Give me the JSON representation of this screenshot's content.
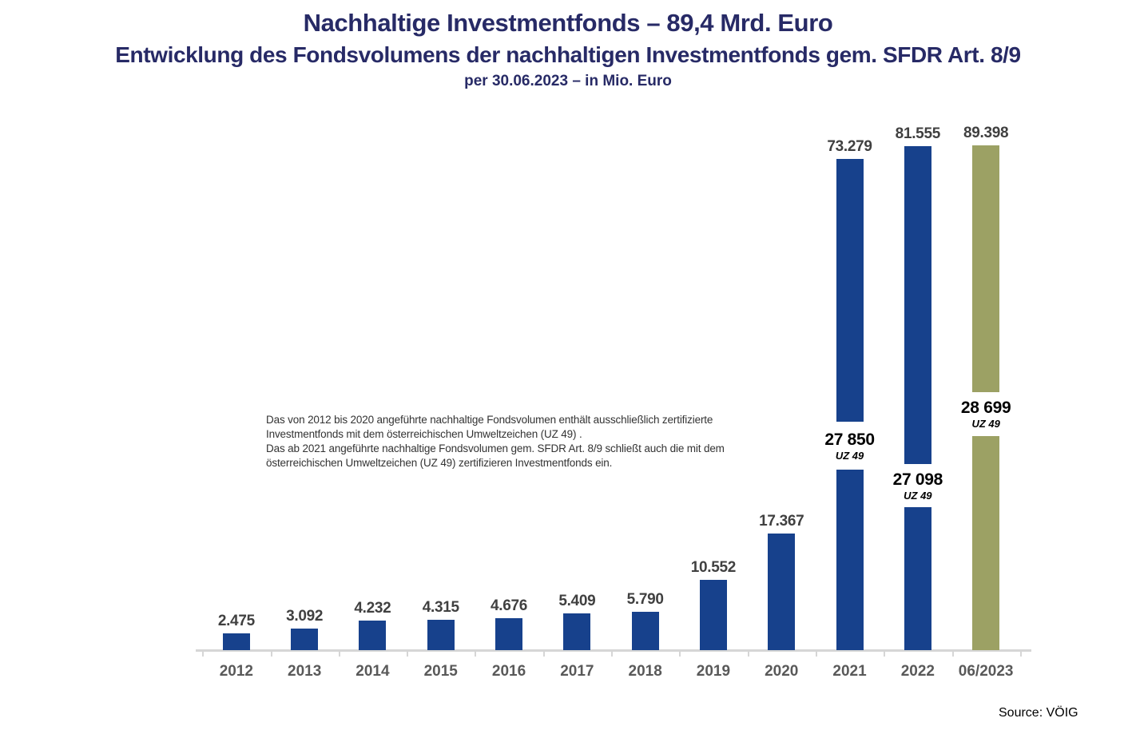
{
  "header": {
    "title": "Nachhaltige Investmentfonds – 89,4 Mrd. Euro",
    "subtitle": "Entwicklung des Fondsvolumens der nachhaltigen Investmentfonds gem. SFDR Art. 8/9",
    "date_line": "per 30.06.2023 – in Mio. Euro"
  },
  "annotation": {
    "lines": [
      "Das von 2012 bis 2020 angeführte nachhaltige Fondsvolumen enthält ausschließlich zertifizierte",
      "Investmentfonds mit dem österreichischen Umweltzeichen (UZ 49) .",
      "Das ab 2021 angeführte nachhaltige Fondsvolumen gem. SFDR Art. 8/9 schließt auch die mit dem",
      "österreichischen Umweltzeichen (UZ 49) zertifizieren Investmentfonds ein."
    ]
  },
  "source_label": "Source: VÖIG",
  "colors": {
    "title_navy": "#272A66",
    "bar_navy": "#17418C",
    "bar_olive": "#9CA164",
    "value_label_gray": "#404040",
    "axis_label_gray": "#595959",
    "axis_line_gray": "#D6D6D6",
    "breakout_black": "#000000"
  },
  "chart_data": {
    "type": "bar",
    "title": "Nachhaltige Investmentfonds – 89,4 Mrd. Euro",
    "subtitle": "Entwicklung des Fondsvolumens der nachhaltigen Investmentfonds gem. SFDR Art. 8/9",
    "unit": "Mio. Euro",
    "as_of": "per 30.06.2023",
    "grid": false,
    "y_axis_shown": false,
    "categories": [
      "2012",
      "2013",
      "2014",
      "2015",
      "2016",
      "2017",
      "2018",
      "2019",
      "2020",
      "2021",
      "2022",
      "06/2023"
    ],
    "values": [
      2475,
      3092,
      4232,
      4315,
      4676,
      5409,
      5790,
      10552,
      17367,
      73279,
      81555,
      89398
    ],
    "value_labels": [
      "2.475",
      "3.092",
      "4.232",
      "4.315",
      "4.676",
      "5.409",
      "5.790",
      "10.552",
      "17.367",
      "73.279",
      "81.555",
      "89.398"
    ],
    "axis_break_bars": [
      "2021",
      "2022",
      "06/2023"
    ],
    "uz49_breakout": [
      {
        "category": "2021",
        "value": 27850,
        "label": "27 850",
        "sublabel": "UZ 49"
      },
      {
        "category": "2022",
        "value": 27098,
        "label": "27 098",
        "sublabel": "UZ 49"
      },
      {
        "category": "06/2023",
        "value": 28699,
        "label": "28 699",
        "sublabel": "UZ 49"
      }
    ],
    "highlight_category": "06/2023"
  }
}
